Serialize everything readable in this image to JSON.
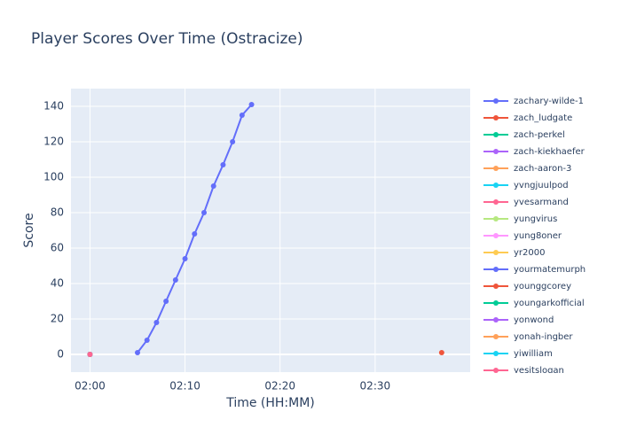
{
  "chart_data": {
    "type": "line",
    "title": "Player Scores Over Time (Ostracize)",
    "x_label": "Time (HH:MM)",
    "y_label": "Score",
    "xlim": [
      "01:58",
      "02:40"
    ],
    "xticks": [
      "02:00",
      "02:10",
      "02:20",
      "02:30"
    ],
    "ylim": [
      -10,
      150
    ],
    "yticks": [
      0,
      20,
      40,
      60,
      80,
      100,
      120,
      140
    ],
    "grid": true,
    "legend": "right",
    "series": [
      {
        "name": "zachary-wilde-1",
        "color": "#636efa",
        "x": [
          "02:05",
          "02:06",
          "02:07",
          "02:08",
          "02:09",
          "02:10",
          "02:11",
          "02:12",
          "02:13",
          "02:14",
          "02:15",
          "02:16",
          "02:17"
        ],
        "values": [
          1,
          8,
          18,
          30,
          42,
          54,
          68,
          80,
          95,
          107,
          120,
          135,
          141
        ]
      },
      {
        "name": "zach_ludgate",
        "color": "#EF553B",
        "x": [
          "02:37"
        ],
        "values": [
          1
        ]
      },
      {
        "name": "zach-perkel",
        "color": "#00cc96",
        "x": [
          "02:00"
        ],
        "values": [
          0
        ]
      },
      {
        "name": "zach-kiekhaefer",
        "color": "#ab63fa",
        "x": [
          "02:00"
        ],
        "values": [
          0
        ]
      },
      {
        "name": "zach-aaron-3",
        "color": "#FFA15A",
        "x": [
          "02:00"
        ],
        "values": [
          0
        ]
      },
      {
        "name": "yvngjuulpod",
        "color": "#19d3f3",
        "x": [
          "02:00"
        ],
        "values": [
          0
        ]
      },
      {
        "name": "yvesarmand",
        "color": "#FF6692",
        "x": [
          "02:00"
        ],
        "values": [
          0
        ]
      },
      {
        "name": "yungvirus",
        "color": "#B6E880",
        "x": [
          "02:00"
        ],
        "values": [
          0
        ]
      },
      {
        "name": "yung8oner",
        "color": "#FF97FF",
        "x": [
          "02:00"
        ],
        "values": [
          0
        ]
      },
      {
        "name": "yr2000",
        "color": "#FECB52",
        "x": [
          "02:00"
        ],
        "values": [
          0
        ]
      },
      {
        "name": "yourmatemurph",
        "color": "#636efa",
        "x": [
          "02:00"
        ],
        "values": [
          0
        ]
      },
      {
        "name": "younggcorey",
        "color": "#EF553B",
        "x": [
          "02:00"
        ],
        "values": [
          0
        ]
      },
      {
        "name": "youngarkofficial",
        "color": "#00cc96",
        "x": [
          "02:00"
        ],
        "values": [
          0
        ]
      },
      {
        "name": "yonwond",
        "color": "#ab63fa",
        "x": [
          "02:00"
        ],
        "values": [
          0
        ]
      },
      {
        "name": "yonah-ingber",
        "color": "#FFA15A",
        "x": [
          "02:00"
        ],
        "values": [
          0
        ]
      },
      {
        "name": "yiwilliam",
        "color": "#19d3f3",
        "x": [
          "02:00"
        ],
        "values": [
          0
        ]
      },
      {
        "name": "yesitslogan",
        "color": "#FF6692",
        "x": [
          "02:00"
        ],
        "values": [
          0
        ]
      }
    ]
  }
}
